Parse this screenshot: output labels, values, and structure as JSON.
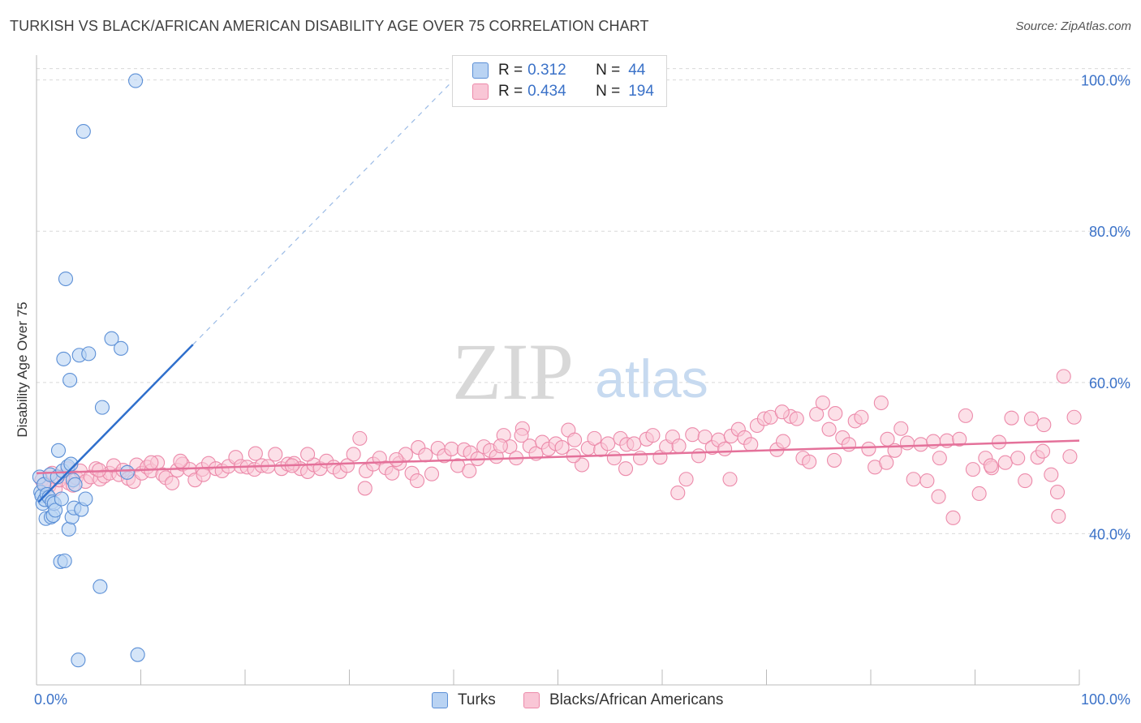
{
  "header": {
    "title": "TURKISH VS BLACK/AFRICAN AMERICAN DISABILITY AGE OVER 75 CORRELATION CHART",
    "source": "Source: ZipAtlas.com"
  },
  "watermark": {
    "zip": "ZIP",
    "atlas": "atlas"
  },
  "legend": {
    "turks": {
      "r_label": "R = ",
      "r_value": "0.312",
      "n_label": "N = ",
      "n_value": "44"
    },
    "blacks": {
      "r_label": "R = ",
      "r_value": "0.434",
      "n_label": "N = ",
      "n_value": "194"
    }
  },
  "colors": {
    "turks_fill": "#b9d3f3",
    "turks_stroke": "#5b8fd6",
    "turks_line": "#2f6fcc",
    "blacks_fill": "#f9c6d6",
    "blacks_stroke": "#ec8aaa",
    "blacks_line": "#e4719a",
    "axis_text": "#3b72c8",
    "grid": "#d9d9d9"
  },
  "chart_data": {
    "type": "scatter",
    "title": "TURKISH VS BLACK/AFRICAN AMERICAN DISABILITY AGE OVER 75 CORRELATION CHART",
    "xlabel": "",
    "ylabel": "Disability Age Over 75",
    "xlim": [
      0,
      100
    ],
    "ylim": [
      20,
      102
    ],
    "x_tick_labels": [
      "0.0%",
      "100.0%"
    ],
    "y_ticks": [
      40,
      60,
      80,
      100
    ],
    "y_tick_labels": [
      "40.0%",
      "60.0%",
      "80.0%",
      "100.0%"
    ],
    "grid": true,
    "legend_position": "top-center",
    "series": [
      {
        "name": "Turks",
        "r": 0.312,
        "n": 44,
        "trend": {
          "x": [
            0.2,
            15.0
          ],
          "y": [
            44.2,
            65.0
          ],
          "dashed_to": [
            40.0,
            100.0
          ]
        },
        "points": [
          [
            0.3,
            47.5
          ],
          [
            0.4,
            45.5
          ],
          [
            0.5,
            45.0
          ],
          [
            0.6,
            44.0
          ],
          [
            0.7,
            46.5
          ],
          [
            0.8,
            44.5
          ],
          [
            0.9,
            42.0
          ],
          [
            1.0,
            45.2
          ],
          [
            1.2,
            44.8
          ],
          [
            1.3,
            47.8
          ],
          [
            1.4,
            42.2
          ],
          [
            1.5,
            44.2
          ],
          [
            1.6,
            42.4
          ],
          [
            1.7,
            44.0
          ],
          [
            1.8,
            43.1
          ],
          [
            2.0,
            47.5
          ],
          [
            2.1,
            51.0
          ],
          [
            2.3,
            36.3
          ],
          [
            2.4,
            44.6
          ],
          [
            2.5,
            48.3
          ],
          [
            2.6,
            63.1
          ],
          [
            2.7,
            36.4
          ],
          [
            2.8,
            73.7
          ],
          [
            3.0,
            48.9
          ],
          [
            3.1,
            40.6
          ],
          [
            3.2,
            60.3
          ],
          [
            3.3,
            49.2
          ],
          [
            3.4,
            42.2
          ],
          [
            3.5,
            47.1
          ],
          [
            3.6,
            43.4
          ],
          [
            3.7,
            46.5
          ],
          [
            4.0,
            23.3
          ],
          [
            4.1,
            63.6
          ],
          [
            4.3,
            43.2
          ],
          [
            4.5,
            93.2
          ],
          [
            4.7,
            44.6
          ],
          [
            5.0,
            63.8
          ],
          [
            6.1,
            33.0
          ],
          [
            6.3,
            56.7
          ],
          [
            7.2,
            65.8
          ],
          [
            8.1,
            64.5
          ],
          [
            8.7,
            48.1
          ],
          [
            9.5,
            99.9
          ],
          [
            9.7,
            24.0
          ]
        ]
      },
      {
        "name": "Blacks/African Americans",
        "r": 0.434,
        "n": 194,
        "trend": {
          "x": [
            0.0,
            100.0
          ],
          "y": [
            48.0,
            52.3
          ]
        },
        "points": [
          [
            0.5,
            47.1
          ],
          [
            0.8,
            46.6
          ],
          [
            1.2,
            46.3
          ],
          [
            1.5,
            48.0
          ],
          [
            1.8,
            45.9
          ],
          [
            2.2,
            47.1
          ],
          [
            2.6,
            47.6
          ],
          [
            3.1,
            46.7
          ],
          [
            3.5,
            46.4
          ],
          [
            3.8,
            47.4
          ],
          [
            4.2,
            48.3
          ],
          [
            4.7,
            46.9
          ],
          [
            5.2,
            47.5
          ],
          [
            5.7,
            48.6
          ],
          [
            6.1,
            47.2
          ],
          [
            6.5,
            47.6
          ],
          [
            7.0,
            48.0
          ],
          [
            7.4,
            49.0
          ],
          [
            7.9,
            47.8
          ],
          [
            8.3,
            48.4
          ],
          [
            8.8,
            47.3
          ],
          [
            9.3,
            46.9
          ],
          [
            9.6,
            49.1
          ],
          [
            10.1,
            48.0
          ],
          [
            10.6,
            48.8
          ],
          [
            11.0,
            48.3
          ],
          [
            11.6,
            49.4
          ],
          [
            12.1,
            47.8
          ],
          [
            12.4,
            47.4
          ],
          [
            13.0,
            46.7
          ],
          [
            13.5,
            48.4
          ],
          [
            14.0,
            49.2
          ],
          [
            14.7,
            48.5
          ],
          [
            15.2,
            47.1
          ],
          [
            15.9,
            48.5
          ],
          [
            16.5,
            49.3
          ],
          [
            17.2,
            48.6
          ],
          [
            17.8,
            48.3
          ],
          [
            18.4,
            48.9
          ],
          [
            19.1,
            50.1
          ],
          [
            19.6,
            48.9
          ],
          [
            20.2,
            48.8
          ],
          [
            20.9,
            48.5
          ],
          [
            21.6,
            49.0
          ],
          [
            22.2,
            48.9
          ],
          [
            22.9,
            50.5
          ],
          [
            23.5,
            48.6
          ],
          [
            24.1,
            49.2
          ],
          [
            24.7,
            49.3
          ],
          [
            25.3,
            48.6
          ],
          [
            26.0,
            48.2
          ],
          [
            26.6,
            49.1
          ],
          [
            27.2,
            48.6
          ],
          [
            27.8,
            49.6
          ],
          [
            28.5,
            48.8
          ],
          [
            29.1,
            48.2
          ],
          [
            29.8,
            49.0
          ],
          [
            30.4,
            50.5
          ],
          [
            31.0,
            52.6
          ],
          [
            31.6,
            48.3
          ],
          [
            32.3,
            49.2
          ],
          [
            32.9,
            50.0
          ],
          [
            33.5,
            48.7
          ],
          [
            34.1,
            48.0
          ],
          [
            34.8,
            49.3
          ],
          [
            35.4,
            50.5
          ],
          [
            36.0,
            48.0
          ],
          [
            36.6,
            51.4
          ],
          [
            37.3,
            50.4
          ],
          [
            37.9,
            47.9
          ],
          [
            38.5,
            51.3
          ],
          [
            39.1,
            50.3
          ],
          [
            39.8,
            51.2
          ],
          [
            40.4,
            49.0
          ],
          [
            41.0,
            51.1
          ],
          [
            41.6,
            50.7
          ],
          [
            42.3,
            49.9
          ],
          [
            42.9,
            51.5
          ],
          [
            43.5,
            51.0
          ],
          [
            44.1,
            50.2
          ],
          [
            44.8,
            53.0
          ],
          [
            45.4,
            51.5
          ],
          [
            46.0,
            50.0
          ],
          [
            46.6,
            53.9
          ],
          [
            47.3,
            51.6
          ],
          [
            47.9,
            50.6
          ],
          [
            48.5,
            52.1
          ],
          [
            49.1,
            51.2
          ],
          [
            49.8,
            51.9
          ],
          [
            50.4,
            51.4
          ],
          [
            51.0,
            53.7
          ],
          [
            51.6,
            52.4
          ],
          [
            52.3,
            49.1
          ],
          [
            52.9,
            51.3
          ],
          [
            53.5,
            52.6
          ],
          [
            54.1,
            51.1
          ],
          [
            54.8,
            51.9
          ],
          [
            55.4,
            50.0
          ],
          [
            56.0,
            52.6
          ],
          [
            56.6,
            51.8
          ],
          [
            57.3,
            51.9
          ],
          [
            57.9,
            50.0
          ],
          [
            58.5,
            52.5
          ],
          [
            59.1,
            53.0
          ],
          [
            59.8,
            50.1
          ],
          [
            60.4,
            51.5
          ],
          [
            61.0,
            52.8
          ],
          [
            61.6,
            51.6
          ],
          [
            62.3,
            47.2
          ],
          [
            62.9,
            53.1
          ],
          [
            63.5,
            50.3
          ],
          [
            64.1,
            52.8
          ],
          [
            64.8,
            51.4
          ],
          [
            65.4,
            52.4
          ],
          [
            66.0,
            51.2
          ],
          [
            66.6,
            52.9
          ],
          [
            67.3,
            53.8
          ],
          [
            67.9,
            52.7
          ],
          [
            68.5,
            51.8
          ],
          [
            69.1,
            54.3
          ],
          [
            69.8,
            55.2
          ],
          [
            70.4,
            55.4
          ],
          [
            71.0,
            51.1
          ],
          [
            71.6,
            52.2
          ],
          [
            72.3,
            55.5
          ],
          [
            72.9,
            55.2
          ],
          [
            73.5,
            50.0
          ],
          [
            74.1,
            49.5
          ],
          [
            74.8,
            55.8
          ],
          [
            75.4,
            57.3
          ],
          [
            76.0,
            53.8
          ],
          [
            76.6,
            55.9
          ],
          [
            77.3,
            52.7
          ],
          [
            77.9,
            51.8
          ],
          [
            78.5,
            54.9
          ],
          [
            79.1,
            55.4
          ],
          [
            79.8,
            51.2
          ],
          [
            80.4,
            48.8
          ],
          [
            81.0,
            57.3
          ],
          [
            81.6,
            52.5
          ],
          [
            82.3,
            51.0
          ],
          [
            82.9,
            53.9
          ],
          [
            83.5,
            52.0
          ],
          [
            84.1,
            47.2
          ],
          [
            84.8,
            51.8
          ],
          [
            85.4,
            47.0
          ],
          [
            86.0,
            52.2
          ],
          [
            86.6,
            50.0
          ],
          [
            87.3,
            52.3
          ],
          [
            87.9,
            42.1
          ],
          [
            88.5,
            52.5
          ],
          [
            89.1,
            55.6
          ],
          [
            89.8,
            48.5
          ],
          [
            90.4,
            45.3
          ],
          [
            91.0,
            50.0
          ],
          [
            91.6,
            48.7
          ],
          [
            92.3,
            52.1
          ],
          [
            92.9,
            49.4
          ],
          [
            93.5,
            55.3
          ],
          [
            94.1,
            50.0
          ],
          [
            94.8,
            47.0
          ],
          [
            95.4,
            55.2
          ],
          [
            96.0,
            50.1
          ],
          [
            96.6,
            54.4
          ],
          [
            97.3,
            47.8
          ],
          [
            97.9,
            45.5
          ],
          [
            98.5,
            60.8
          ],
          [
            99.1,
            50.2
          ],
          [
            99.5,
            55.4
          ],
          [
            3.0,
            48.6
          ],
          [
            6.0,
            48.4
          ],
          [
            11.0,
            49.4
          ],
          [
            16.0,
            47.8
          ],
          [
            21.0,
            50.6
          ],
          [
            26.0,
            50.5
          ],
          [
            31.5,
            46.0
          ],
          [
            36.5,
            47.0
          ],
          [
            41.5,
            48.3
          ],
          [
            46.5,
            53.0
          ],
          [
            51.5,
            50.3
          ],
          [
            56.5,
            48.6
          ],
          [
            61.5,
            45.4
          ],
          [
            66.5,
            47.2
          ],
          [
            71.5,
            56.1
          ],
          [
            76.5,
            49.7
          ],
          [
            81.5,
            49.4
          ],
          [
            86.5,
            44.9
          ],
          [
            91.5,
            49.0
          ],
          [
            96.5,
            50.9
          ],
          [
            98.0,
            42.3
          ],
          [
            13.8,
            49.6
          ],
          [
            24.5,
            49.0
          ],
          [
            34.5,
            49.8
          ],
          [
            44.5,
            51.6
          ]
        ]
      }
    ]
  }
}
